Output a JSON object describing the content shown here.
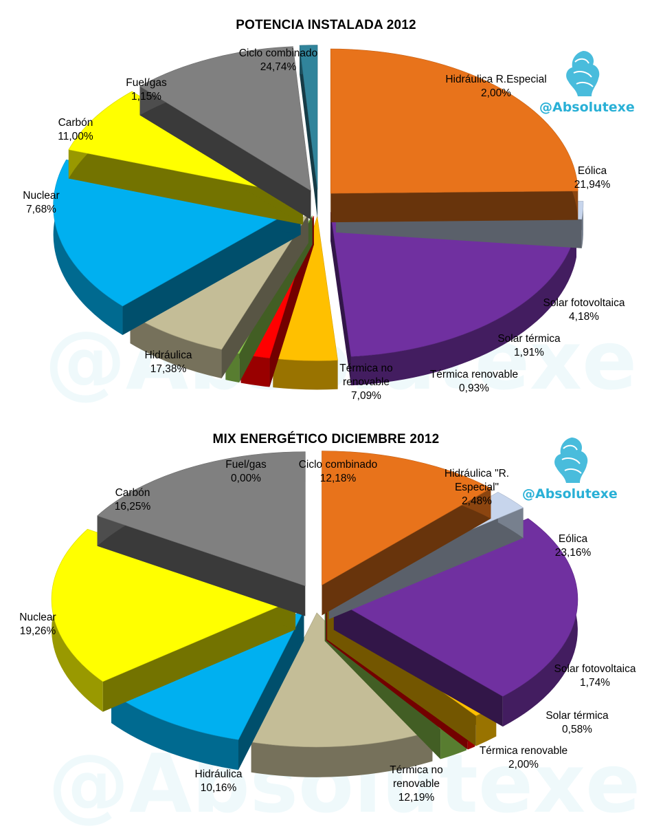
{
  "brand": {
    "handle": "@Absolutexe",
    "watermark": "@Absolutexe"
  },
  "chart_data": [
    {
      "type": "pie",
      "title": "POTENCIA INSTALADA 2012",
      "slices": [
        {
          "label": [
            "Ciclo combinado"
          ],
          "value_text": "24,74%",
          "value": 24.74,
          "color": "#e8731b"
        },
        {
          "label": [
            "Hidráulica R.Especial"
          ],
          "value_text": "2,00%",
          "value": 2.0,
          "color": "#c7d5ec"
        },
        {
          "label": [
            "Eólica"
          ],
          "value_text": "21,94%",
          "value": 21.94,
          "color": "#7030a0"
        },
        {
          "label": [
            "Solar fotovoltaica"
          ],
          "value_text": "4,18%",
          "value": 4.18,
          "color": "#ffc000"
        },
        {
          "label": [
            "Solar térmica"
          ],
          "value_text": "1,91%",
          "value": 1.91,
          "color": "#ff0000"
        },
        {
          "label": [
            "Térmica renovable"
          ],
          "value_text": "0,93%",
          "value": 0.93,
          "color": "#92d050"
        },
        {
          "label": [
            "Térmica no",
            "renovable"
          ],
          "value_text": "7,09%",
          "value": 7.09,
          "color": "#c4bd97"
        },
        {
          "label": [
            "Hidráulica"
          ],
          "value_text": "17,38%",
          "value": 17.38,
          "color": "#00b0f0"
        },
        {
          "label": [
            "Nuclear"
          ],
          "value_text": "7,68%",
          "value": 7.68,
          "color": "#ffff00"
        },
        {
          "label": [
            "Carbón"
          ],
          "value_text": "11,00%",
          "value": 11.0,
          "color": "#808080"
        },
        {
          "label": [
            "Fuel/gas"
          ],
          "value_text": "1,15%",
          "value": 1.15,
          "color": "#31849b"
        }
      ]
    },
    {
      "type": "pie",
      "title": "MIX ENERGÉTICO DICIEMBRE 2012",
      "slices": [
        {
          "label": [
            "Ciclo combinado"
          ],
          "value_text": "12,18%",
          "value": 12.18,
          "color": "#e8731b"
        },
        {
          "label": [
            "Hidráulica \"R.",
            "Especial\""
          ],
          "value_text": "2,48%",
          "value": 2.48,
          "color": "#c7d5ec"
        },
        {
          "label": [
            "Eólica"
          ],
          "value_text": "23,16%",
          "value": 23.16,
          "color": "#7030a0"
        },
        {
          "label": [
            "Solar fotovoltaica"
          ],
          "value_text": "1,74%",
          "value": 1.74,
          "color": "#ffc000"
        },
        {
          "label": [
            "Solar térmica"
          ],
          "value_text": "0,58%",
          "value": 0.58,
          "color": "#ff0000"
        },
        {
          "label": [
            "Térmica renovable"
          ],
          "value_text": "2,00%",
          "value": 2.0,
          "color": "#92d050"
        },
        {
          "label": [
            "Térmica no",
            "renovable"
          ],
          "value_text": "12,19%",
          "value": 12.19,
          "color": "#c4bd97"
        },
        {
          "label": [
            "Hidráulica"
          ],
          "value_text": "10,16%",
          "value": 10.16,
          "color": "#00b0f0"
        },
        {
          "label": [
            "Nuclear"
          ],
          "value_text": "19,26%",
          "value": 19.26,
          "color": "#ffff00"
        },
        {
          "label": [
            "Carbón"
          ],
          "value_text": "16,25%",
          "value": 16.25,
          "color": "#808080"
        },
        {
          "label": [
            "Fuel/gas"
          ],
          "value_text": "0,00%",
          "value": 0.0,
          "color": "#31849b"
        }
      ]
    }
  ]
}
